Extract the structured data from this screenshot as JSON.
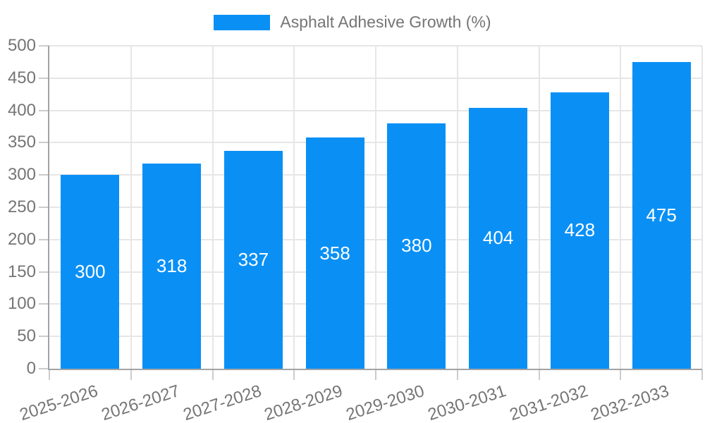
{
  "chart_data": {
    "type": "bar",
    "title": "",
    "legend_label": "Asphalt Adhesive Growth (%)",
    "legend_position": "top",
    "categories": [
      "2025-2026",
      "2026-2027",
      "2027-2028",
      "2028-2029",
      "2029-2030",
      "2030-2031",
      "2031-2032",
      "2032-2033"
    ],
    "values": [
      300,
      318,
      337,
      358,
      380,
      404,
      428,
      475
    ],
    "xlabel": "",
    "ylabel": "",
    "ylim": [
      0,
      500
    ],
    "yticks": [
      0,
      50,
      100,
      150,
      200,
      250,
      300,
      350,
      400,
      450,
      500
    ],
    "grid": true,
    "colors": {
      "bar": "#0a90f5",
      "bar_value_text": "#ffffff",
      "tick_label": "#757575",
      "gridline": "#e6e6e6",
      "tick_mark": "#cccccc",
      "axis_line": "#a3a3a3",
      "background": "#ffffff"
    }
  }
}
